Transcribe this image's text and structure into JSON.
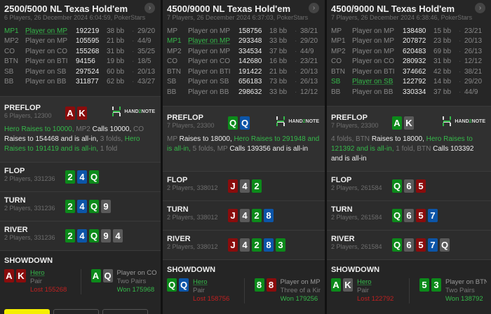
{
  "hands": [
    {
      "title": "2500/5000 NL Texas Hold'em",
      "subtitle": "6 Players, 26 December 2024 6:04:59, PokerStars",
      "players": [
        {
          "pos": "MP1",
          "name": "Player on MP",
          "stack": "192219",
          "bb": "38 bb",
          "stats": "29/20",
          "hero": true
        },
        {
          "pos": "MP2",
          "name": "Player on MP",
          "stack": "105595",
          "bb": "21 bb",
          "stats": "44/9"
        },
        {
          "pos": "CO",
          "name": "Player on CO",
          "stack": "155268",
          "bb": "31 bb",
          "stats": "35/25"
        },
        {
          "pos": "BTN",
          "name": "Player on BTI",
          "stack": "94156",
          "bb": "19 bb",
          "stats": "18/5"
        },
        {
          "pos": "SB",
          "name": "Player on SB",
          "stack": "297524",
          "bb": "60 bb",
          "stats": "20/13"
        },
        {
          "pos": "BB",
          "name": "Player on BB",
          "stack": "311877",
          "bb": "62 bb",
          "stats": "43/27"
        }
      ],
      "preflop": {
        "label": "PREFLOP",
        "sub": "6 Players, 12300",
        "cards": [
          [
            "A",
            "h"
          ],
          [
            "K",
            "h"
          ]
        ],
        "actions": [
          [
            "Hero Raises to 10000,",
            "g"
          ],
          [
            " MP2 ",
            ""
          ],
          [
            "Calls 10000,",
            "w"
          ],
          [
            " CO ",
            ""
          ],
          [
            "Raises to 154468 and is all-in,",
            "w"
          ],
          [
            " 3 folds, ",
            ""
          ],
          [
            "Hero Raises to 191419 and is all-in,",
            "g"
          ],
          [
            " 1 fold",
            ""
          ]
        ]
      },
      "streets": [
        {
          "label": "FLOP",
          "sub": "2 Players, 331236",
          "cards": [
            [
              "2",
              "c"
            ],
            [
              "4",
              "d"
            ],
            [
              "Q",
              "c"
            ]
          ]
        },
        {
          "label": "TURN",
          "sub": "2 Players, 331236",
          "cards": [
            [
              "2",
              "c"
            ],
            [
              "4",
              "d"
            ],
            [
              "Q",
              "c"
            ],
            [
              "9",
              "s"
            ]
          ]
        },
        {
          "label": "RIVER",
          "sub": "2 Players, 331236",
          "cards": [
            [
              "2",
              "c"
            ],
            [
              "4",
              "d"
            ],
            [
              "Q",
              "c"
            ],
            [
              "9",
              "s"
            ],
            [
              "4",
              "s"
            ]
          ]
        }
      ],
      "showdown": {
        "label": "SHOWDOWN",
        "hero": {
          "name": "Hero",
          "hand": "Pair",
          "result": "Lost 155268",
          "cards": [
            [
              "A",
              "h"
            ],
            [
              "K",
              "h"
            ]
          ]
        },
        "villain": {
          "name": "Player on CO",
          "hand": "Two Pairs",
          "result": "Won 175968",
          "cards": [
            [
              "A",
              "c"
            ],
            [
              "Q",
              "s"
            ]
          ]
        }
      }
    },
    {
      "title": "4500/9000 NL Texas Hold'em",
      "subtitle": "7 Players, 26 December 2024 6:37:03, PokerStars",
      "players": [
        {
          "pos": "MP",
          "name": "Player on MP",
          "stack": "158756",
          "bb": "18 bb",
          "stats": "38/21"
        },
        {
          "pos": "MP1",
          "name": "Player on MP",
          "stack": "293348",
          "bb": "33 bb",
          "stats": "29/20",
          "hero": true
        },
        {
          "pos": "MP2",
          "name": "Player on MP",
          "stack": "334534",
          "bb": "37 bb",
          "stats": "44/9"
        },
        {
          "pos": "CO",
          "name": "Player on CO",
          "stack": "142680",
          "bb": "16 bb",
          "stats": "23/21"
        },
        {
          "pos": "BTN",
          "name": "Player on BTI",
          "stack": "191422",
          "bb": "21 bb",
          "stats": "20/13"
        },
        {
          "pos": "SB",
          "name": "Player on SB",
          "stack": "656183",
          "bb": "73 bb",
          "stats": "26/13"
        },
        {
          "pos": "BB",
          "name": "Player on BB",
          "stack": "298632",
          "bb": "33 bb",
          "stats": "12/12"
        }
      ],
      "preflop": {
        "label": "PREFLOP",
        "sub": "7 Players, 23300",
        "cards": [
          [
            "Q",
            "c"
          ],
          [
            "Q",
            "d"
          ]
        ],
        "actions": [
          [
            "MP ",
            ""
          ],
          [
            "Raises to 18000,",
            "w"
          ],
          [
            " ",
            ""
          ],
          [
            "Hero Raises to 291948 and is all-in,",
            "g"
          ],
          [
            " 5 folds, MP ",
            ""
          ],
          [
            "Calls 139356 and is all-in",
            "w"
          ]
        ]
      },
      "streets": [
        {
          "label": "FLOP",
          "sub": "2 Players, 338012",
          "cards": [
            [
              "J",
              "h"
            ],
            [
              "4",
              "s"
            ],
            [
              "2",
              "c"
            ]
          ]
        },
        {
          "label": "TURN",
          "sub": "2 Players, 338012",
          "cards": [
            [
              "J",
              "h"
            ],
            [
              "4",
              "s"
            ],
            [
              "2",
              "c"
            ],
            [
              "8",
              "d"
            ]
          ]
        },
        {
          "label": "RIVER",
          "sub": "2 Players, 338012",
          "cards": [
            [
              "J",
              "h"
            ],
            [
              "4",
              "s"
            ],
            [
              "2",
              "c"
            ],
            [
              "8",
              "d"
            ],
            [
              "3",
              "c"
            ]
          ]
        }
      ],
      "showdown": {
        "label": "SHOWDOWN",
        "hero": {
          "name": "Hero",
          "hand": "Pair",
          "result": "Lost 158756",
          "cards": [
            [
              "Q",
              "c"
            ],
            [
              "Q",
              "d"
            ]
          ]
        },
        "villain": {
          "name": "Player on MP",
          "hand": "Three of a Kind",
          "result": "Won 179256",
          "cards": [
            [
              "8",
              "c"
            ],
            [
              "8",
              "h"
            ]
          ]
        }
      }
    },
    {
      "title": "4500/9000 NL Texas Hold'em",
      "subtitle": "7 Players, 26 December 2024 6:38:46, PokerStars",
      "players": [
        {
          "pos": "MP",
          "name": "Player on MP",
          "stack": "138480",
          "bb": "15 bb",
          "stats": "23/21"
        },
        {
          "pos": "MP1",
          "name": "Player on MP",
          "stack": "207872",
          "bb": "23 bb",
          "stats": "20/13"
        },
        {
          "pos": "MP2",
          "name": "Player on MP",
          "stack": "620483",
          "bb": "69 bb",
          "stats": "26/13"
        },
        {
          "pos": "CO",
          "name": "Player on CO",
          "stack": "280932",
          "bb": "31 bb",
          "stats": "12/12"
        },
        {
          "pos": "BTN",
          "name": "Player on BTI",
          "stack": "374662",
          "bb": "42 bb",
          "stats": "38/21"
        },
        {
          "pos": "SB",
          "name": "Player on SB",
          "stack": "122792",
          "bb": "14 bb",
          "stats": "29/20",
          "hero": true
        },
        {
          "pos": "BB",
          "name": "Player on BB",
          "stack": "330334",
          "bb": "37 bb",
          "stats": "44/9"
        }
      ],
      "preflop": {
        "label": "PREFLOP",
        "sub": "7 Players, 23300",
        "cards": [
          [
            "A",
            "c"
          ],
          [
            "K",
            "s"
          ]
        ],
        "actions": [
          [
            "4 folds, BTN ",
            ""
          ],
          [
            "Raises to 18000,",
            "w"
          ],
          [
            " ",
            ""
          ],
          [
            "Hero Raises to 121392 and is all-in,",
            "g"
          ],
          [
            " 1 fold, BTN ",
            ""
          ],
          [
            "Calls 103392 and is all-in",
            "w"
          ]
        ]
      },
      "streets": [
        {
          "label": "FLOP",
          "sub": "2 Players, 261584",
          "cards": [
            [
              "Q",
              "c"
            ],
            [
              "6",
              "s"
            ],
            [
              "5",
              "h"
            ]
          ]
        },
        {
          "label": "TURN",
          "sub": "2 Players, 261584",
          "cards": [
            [
              "Q",
              "c"
            ],
            [
              "6",
              "s"
            ],
            [
              "5",
              "h"
            ],
            [
              "7",
              "d"
            ]
          ]
        },
        {
          "label": "RIVER",
          "sub": "2 Players, 261584",
          "cards": [
            [
              "Q",
              "c"
            ],
            [
              "6",
              "s"
            ],
            [
              "5",
              "h"
            ],
            [
              "7",
              "d"
            ],
            [
              "Q",
              "s"
            ]
          ]
        }
      ],
      "showdown": {
        "label": "SHOWDOWN",
        "hero": {
          "name": "Hero",
          "hand": "Pair",
          "result": "Lost 122792",
          "cards": [
            [
              "A",
              "c"
            ],
            [
              "K",
              "s"
            ]
          ]
        },
        "villain": {
          "name": "Player on BTN",
          "hand": "Two Pairs",
          "result": "Won 138792",
          "cards": [
            [
              "5",
              "c"
            ],
            [
              "3",
              "c"
            ]
          ]
        }
      }
    }
  ],
  "logo": {
    "a": "HAND",
    "b": "2",
    "c": "NOTE"
  },
  "icons": {
    "nav": "chevron-right-icon",
    "logo": "hand2note-logo-icon"
  },
  "colors": {
    "hearts": "#8a0c0c",
    "clubs": "#0c8a1a",
    "diamonds": "#0c55a8",
    "spades": "#5a5a5a",
    "hero": "#35b84a",
    "lost": "#c02020",
    "primary_button": "#f5ef00"
  }
}
